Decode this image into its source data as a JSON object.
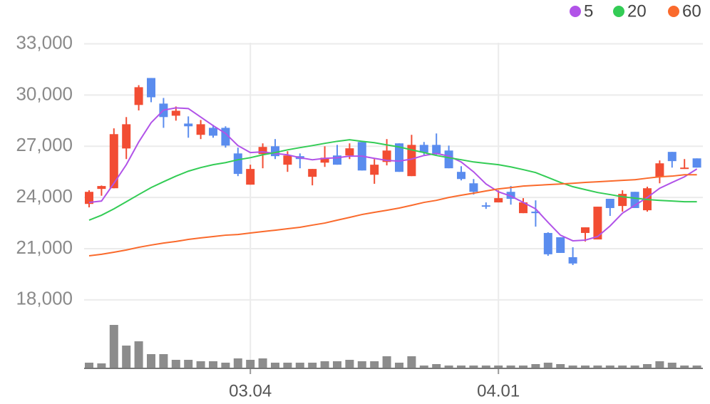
{
  "chart_data": {
    "type": "candlestick",
    "categories": [
      null,
      null,
      null,
      null,
      null,
      null,
      null,
      null,
      null,
      null,
      null,
      null,
      null,
      "03.04",
      null,
      null,
      null,
      null,
      null,
      null,
      null,
      null,
      null,
      null,
      null,
      null,
      null,
      null,
      null,
      null,
      null,
      null,
      null,
      "04.01",
      null,
      null,
      null,
      null,
      null,
      null,
      null,
      null,
      null,
      null,
      null,
      null,
      null,
      null,
      null,
      null
    ],
    "open": [
      23620,
      24500,
      24540,
      26870,
      29420,
      31000,
      29500,
      28790,
      28330,
      27670,
      28080,
      28080,
      26580,
      24750,
      26540,
      27000,
      25920,
      26420,
      25210,
      26040,
      26460,
      26460,
      27250,
      25330,
      26080,
      27170,
      25250,
      27080,
      27080,
      26750,
      25500,
      24830,
      23540,
      23710,
      24330,
      23080,
      23170,
      21920,
      21670,
      20500,
      21920,
      21540,
      23920,
      23500,
      24330,
      23250,
      25210,
      26670,
      25670,
      26290
    ],
    "high": [
      24420,
      24700,
      28050,
      28710,
      30580,
      31000,
      29830,
      29330,
      28750,
      28540,
      28250,
      28170,
      26920,
      25920,
      27170,
      27420,
      26710,
      26580,
      25670,
      27000,
      27080,
      27170,
      27250,
      26250,
      27420,
      27170,
      27670,
      27250,
      27750,
      27040,
      25830,
      25080,
      23710,
      24420,
      24670,
      23960,
      23830,
      21960,
      21670,
      21080,
      22250,
      23460,
      23920,
      24420,
      24330,
      24630,
      26170,
      26670,
      26250,
      26290
    ],
    "low": [
      23420,
      24100,
      24540,
      26250,
      29100,
      29580,
      28080,
      28500,
      27500,
      27420,
      27500,
      26920,
      25250,
      24750,
      25710,
      26250,
      25500,
      25710,
      24710,
      25790,
      25920,
      26250,
      25580,
      24800,
      25880,
      25500,
      25250,
      26500,
      26500,
      25710,
      25000,
      24170,
      23330,
      23710,
      23580,
      23080,
      22290,
      20580,
      20750,
      20040,
      21420,
      21540,
      22920,
      23170,
      23380,
      23170,
      24830,
      25750,
      25670,
      25750
    ],
    "close": [
      24330,
      24670,
      27710,
      28290,
      30460,
      29870,
      28710,
      29080,
      28170,
      28290,
      27620,
      27040,
      25380,
      25670,
      26960,
      26420,
      26460,
      26250,
      25670,
      26330,
      25920,
      26880,
      25580,
      25920,
      26750,
      25500,
      27080,
      26630,
      26580,
      25710,
      25080,
      24330,
      23460,
      23960,
      23920,
      23710,
      23080,
      20670,
      20750,
      20130,
      22250,
      23460,
      23380,
      24210,
      23380,
      24540,
      26000,
      26130,
      25750,
      25750
    ],
    "volume": [
      8,
      7,
      61,
      32,
      38,
      20,
      20,
      12,
      12,
      10,
      10,
      8,
      14,
      12,
      14,
      8,
      8,
      8,
      8,
      10,
      10,
      12,
      10,
      10,
      17,
      8,
      17,
      4,
      6,
      4,
      4,
      4,
      4,
      4,
      4,
      4,
      6,
      8,
      6,
      4,
      4,
      4,
      4,
      4,
      4,
      6,
      10,
      8,
      4,
      4
    ],
    "volume_lim": [
      0,
      70
    ],
    "up_color": "#f24d33",
    "down_color": "#5a8cee",
    "volume_color": "#8c8c8c",
    "series": [
      {
        "name": "5",
        "color": "#b153e8",
        "values": [
          23710,
          23790,
          24830,
          25920,
          27250,
          28380,
          29120,
          29250,
          29210,
          28710,
          28210,
          27750,
          27040,
          26630,
          26670,
          26580,
          26500,
          26330,
          26210,
          26290,
          26330,
          26420,
          26420,
          26290,
          26170,
          26130,
          26250,
          26460,
          26580,
          26420,
          26080,
          25500,
          24790,
          24330,
          24080,
          23710,
          23330,
          22540,
          21790,
          21460,
          21500,
          21710,
          22330,
          23080,
          23540,
          24000,
          24540,
          24880,
          25210,
          25670
        ]
      },
      {
        "name": "20",
        "color": "#33cc55",
        "values": [
          22670,
          22960,
          23330,
          23750,
          24170,
          24580,
          24920,
          25250,
          25540,
          25750,
          25920,
          26040,
          26210,
          26330,
          26500,
          26630,
          26790,
          26920,
          27040,
          27170,
          27290,
          27380,
          27290,
          27210,
          27080,
          26960,
          26790,
          26630,
          26460,
          26330,
          26210,
          26080,
          26000,
          25920,
          25790,
          25630,
          25460,
          25170,
          24880,
          24630,
          24460,
          24290,
          24170,
          24040,
          23960,
          23880,
          23830,
          23790,
          23750,
          23750
        ]
      },
      {
        "name": "60",
        "color": "#fa6a2c",
        "values": [
          20580,
          20670,
          20790,
          20920,
          21080,
          21210,
          21330,
          21420,
          21540,
          21630,
          21710,
          21790,
          21830,
          21920,
          22000,
          22080,
          22170,
          22250,
          22380,
          22500,
          22670,
          22830,
          23000,
          23130,
          23250,
          23380,
          23540,
          23710,
          23830,
          24000,
          24130,
          24250,
          24380,
          24500,
          24580,
          24670,
          24710,
          24750,
          24790,
          24830,
          24880,
          24920,
          24960,
          25000,
          25040,
          25130,
          25210,
          25250,
          25330,
          25330
        ]
      }
    ],
    "ylim": [
      17200,
      33900
    ],
    "yticks": [
      {
        "value": 33000,
        "label": "33,000"
      },
      {
        "value": 30000,
        "label": "30,000"
      },
      {
        "value": 27000,
        "label": "27,000"
      },
      {
        "value": 24000,
        "label": "24,000"
      },
      {
        "value": 21000,
        "label": "21,000"
      },
      {
        "value": 18000,
        "label": "18,000"
      }
    ],
    "grid": true
  }
}
